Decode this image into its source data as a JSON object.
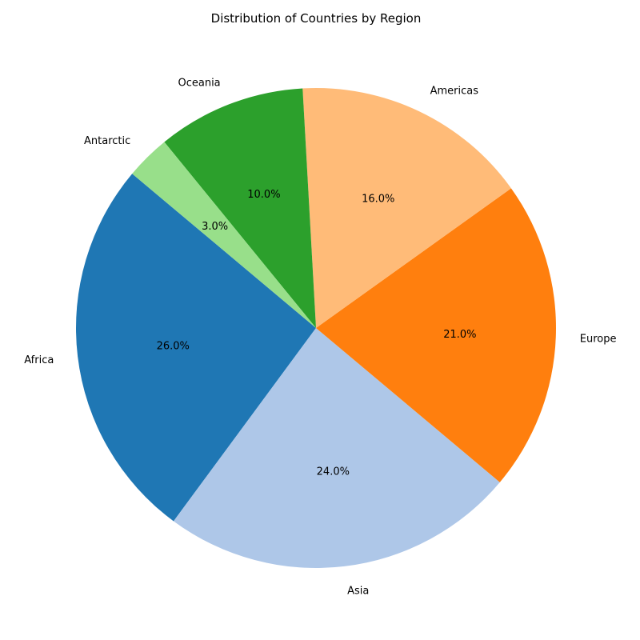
{
  "chart_data": {
    "type": "pie",
    "title": "Distribution of Countries by Region",
    "start_angle_deg": 140,
    "direction": "counterclockwise",
    "slices": [
      {
        "label": "Africa",
        "value": 26.0,
        "pct_text": "26.0%",
        "color": "#1f77b4"
      },
      {
        "label": "Asia",
        "value": 24.0,
        "pct_text": "24.0%",
        "color": "#aec7e8"
      },
      {
        "label": "Europe",
        "value": 21.0,
        "pct_text": "21.0%",
        "color": "#ff7f0e"
      },
      {
        "label": "Americas",
        "value": 16.0,
        "pct_text": "16.0%",
        "color": "#ffbb78"
      },
      {
        "label": "Oceania",
        "value": 10.0,
        "pct_text": "10.0%",
        "color": "#2ca02c"
      },
      {
        "label": "Antarctic",
        "value": 3.0,
        "pct_text": "3.0%",
        "color": "#98df8a"
      }
    ]
  }
}
